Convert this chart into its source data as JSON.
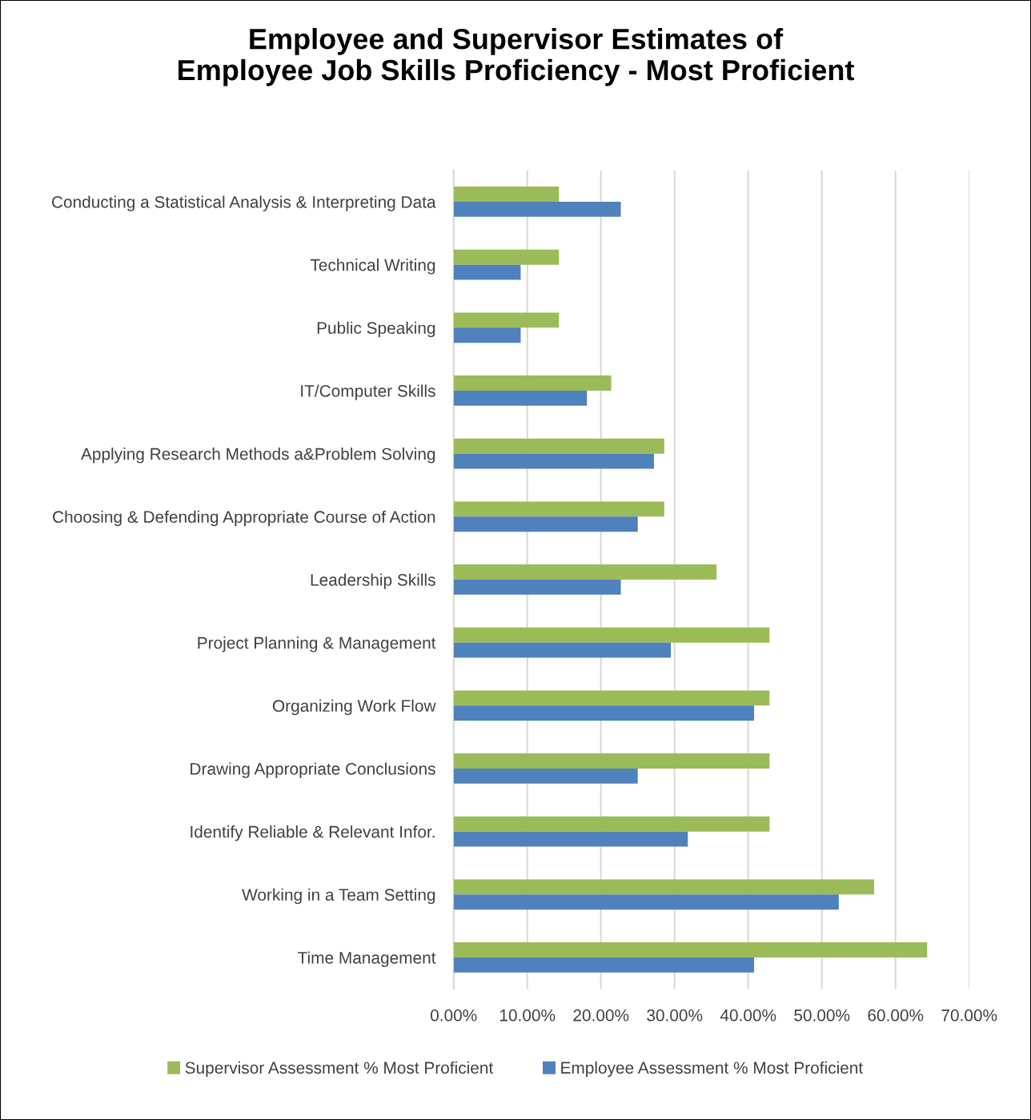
{
  "chart_data": {
    "type": "bar",
    "orientation": "horizontal",
    "title": "Employee and Supervisor Estimates of\nEmployee Job Skills Proficiency - Most Proficient",
    "categories": [
      "Conducting a Statistical Analysis & Interpreting Data",
      "Technical Writing",
      "Public Speaking",
      "IT/Computer Skills",
      "Applying Research Methods a&Problem Solving",
      "Choosing & Defending Appropriate Course of Action",
      "Leadership Skills",
      "Project Planning & Management",
      "Organizing Work Flow",
      "Drawing Appropriate Conclusions",
      "Identify Reliable & Relevant Infor.",
      "Working in a Team Setting",
      "Time Management"
    ],
    "series": [
      {
        "name": "Supervisor Assessment % Most Proficient",
        "color": "#9bbb59",
        "values": [
          14.3,
          14.3,
          14.3,
          21.4,
          28.6,
          28.6,
          35.7,
          42.9,
          42.9,
          42.9,
          42.9,
          57.1,
          64.3
        ]
      },
      {
        "name": "Employee Assessment % Most Proficient",
        "color": "#4f81bd",
        "values": [
          22.7,
          9.1,
          9.1,
          18.1,
          27.2,
          25.0,
          22.7,
          29.5,
          40.8,
          25.0,
          31.8,
          52.3,
          40.8
        ]
      }
    ],
    "xlim": [
      0,
      70
    ],
    "xticks": [
      {
        "value": 0,
        "label": "0.00%"
      },
      {
        "value": 10,
        "label": "10.00%"
      },
      {
        "value": 20,
        "label": "20.00%"
      },
      {
        "value": 30,
        "label": "30.00%"
      },
      {
        "value": 40,
        "label": "40.00%"
      },
      {
        "value": 50,
        "label": "50.00%"
      },
      {
        "value": 60,
        "label": "60.00%"
      },
      {
        "value": 70,
        "label": "70.00%"
      }
    ],
    "grid": "x",
    "legend": "bottom"
  }
}
